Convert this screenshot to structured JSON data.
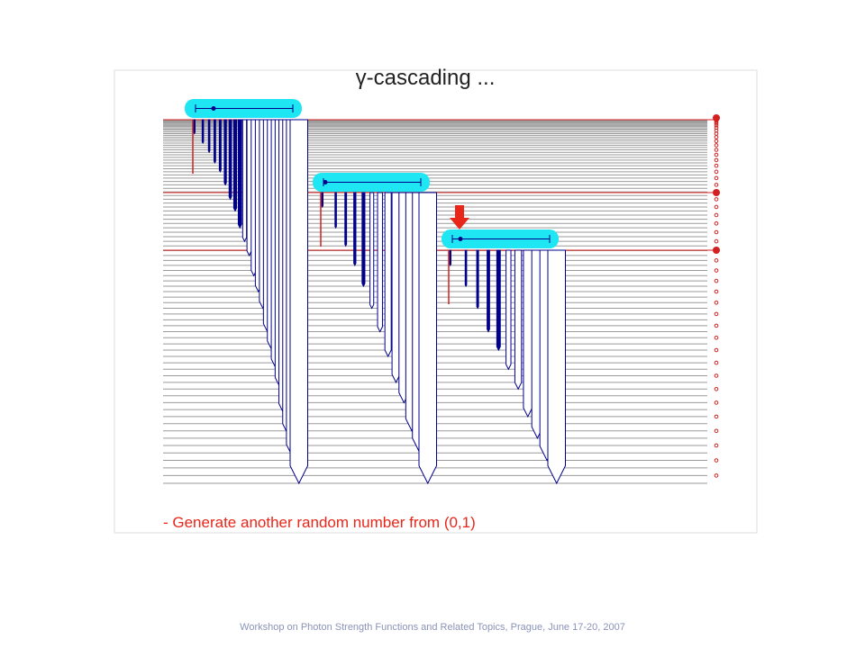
{
  "slide": {
    "title": "γ-cascading ...",
    "bullet": "- Generate another random number from (0,1)",
    "footer": "Workshop on Photon Strength Functions and Related Topics, Prague, June 17-20, 2007"
  }
}
